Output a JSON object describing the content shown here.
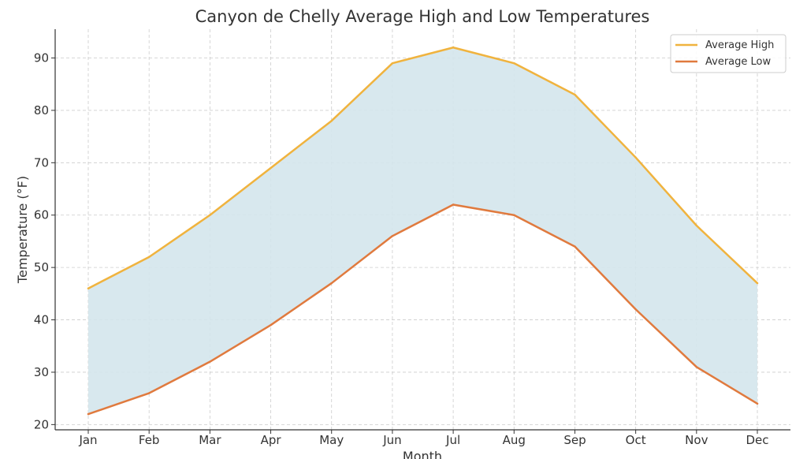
{
  "chart_data": {
    "type": "line",
    "title": "Canyon de Chelly Average High and Low Temperatures",
    "xlabel": "Month",
    "ylabel": "Temperature (°F)",
    "categories": [
      "Jan",
      "Feb",
      "Mar",
      "Apr",
      "May",
      "Jun",
      "Jul",
      "Aug",
      "Sep",
      "Oct",
      "Nov",
      "Dec"
    ],
    "series": [
      {
        "name": "Average High",
        "values": [
          46,
          52,
          60,
          69,
          78,
          89,
          92,
          89,
          83,
          71,
          58,
          47
        ],
        "color": "#F0B33E"
      },
      {
        "name": "Average Low",
        "values": [
          22,
          26,
          32,
          39,
          47,
          56,
          62,
          60,
          54,
          42,
          31,
          24
        ],
        "color": "#E07A3E"
      }
    ],
    "fill_between": {
      "color": "#d4e5ec"
    },
    "ylim": [
      19,
      95.5
    ],
    "yticks": [
      20,
      30,
      40,
      50,
      60,
      70,
      80,
      90
    ],
    "grid": true,
    "legend_position": "top-right"
  }
}
